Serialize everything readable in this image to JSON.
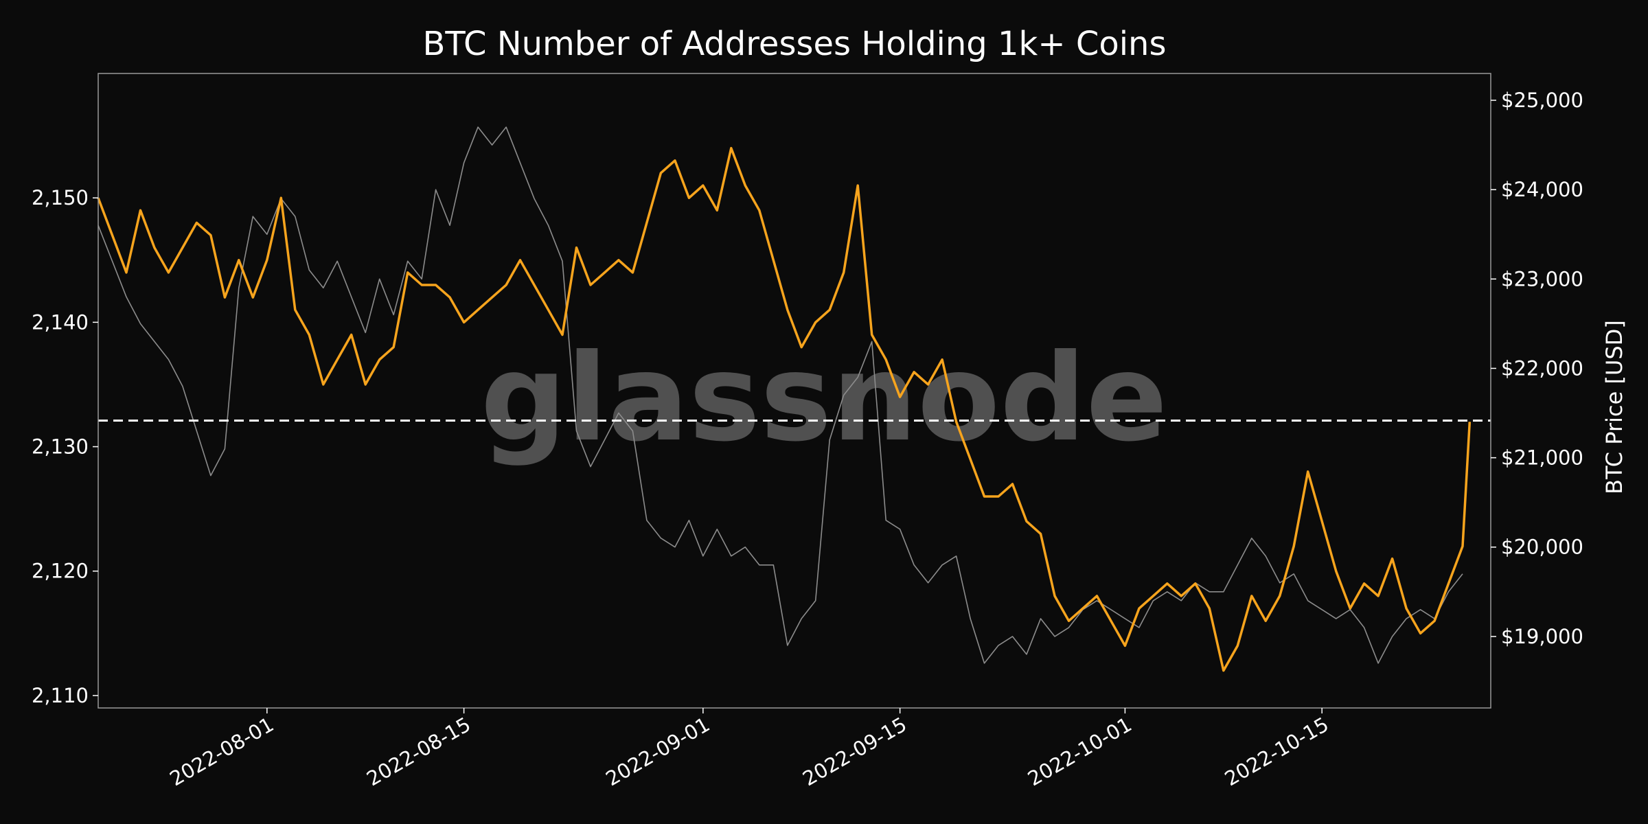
{
  "chart_data": {
    "type": "line",
    "title": "BTC Number of Addresses Holding 1k+ Coins",
    "watermark": "glassnode",
    "x_range": [
      "2022-07-20",
      "2022-10-27"
    ],
    "x_ticks": [
      "2022-08-01",
      "2022-08-15",
      "2022-09-01",
      "2022-09-15",
      "2022-10-01",
      "2022-10-15"
    ],
    "y_left": {
      "label": "",
      "ticks": [
        "2,110",
        "2,120",
        "2,130",
        "2,140",
        "2,150"
      ],
      "range": [
        2109,
        2160
      ]
    },
    "y_right": {
      "label": "BTC Price [USD]",
      "ticks": [
        "$19,000",
        "$20,000",
        "$21,000",
        "$22,000",
        "$23,000",
        "$24,000",
        "$25,000"
      ],
      "range": [
        18200,
        25300
      ]
    },
    "reference_line": {
      "axis": "left",
      "value": 2132.1,
      "style": "dashed",
      "color": "#ffffff"
    },
    "colors": {
      "addresses": "#f7a41d",
      "price": "#8c8c8c",
      "background": "#0b0b0b",
      "frame": "#9a9a9a"
    },
    "series": [
      {
        "axis": "left",
        "color": "#f7a41d",
        "points": [
          [
            "2022-07-20",
            2150
          ],
          [
            "2022-07-21",
            2147
          ],
          [
            "2022-07-22",
            2144
          ],
          [
            "2022-07-23",
            2149
          ],
          [
            "2022-07-24",
            2146
          ],
          [
            "2022-07-25",
            2144
          ],
          [
            "2022-07-26",
            2146
          ],
          [
            "2022-07-27",
            2148
          ],
          [
            "2022-07-28",
            2147
          ],
          [
            "2022-07-29",
            2142
          ],
          [
            "2022-07-30",
            2145
          ],
          [
            "2022-07-31",
            2142
          ],
          [
            "2022-08-01",
            2145
          ],
          [
            "2022-08-02",
            2150
          ],
          [
            "2022-08-03",
            2141
          ],
          [
            "2022-08-04",
            2139
          ],
          [
            "2022-08-05",
            2135
          ],
          [
            "2022-08-06",
            2137
          ],
          [
            "2022-08-07",
            2139
          ],
          [
            "2022-08-08",
            2135
          ],
          [
            "2022-08-09",
            2137
          ],
          [
            "2022-08-10",
            2138
          ],
          [
            "2022-08-11",
            2144
          ],
          [
            "2022-08-12",
            2143
          ],
          [
            "2022-08-13",
            2143
          ],
          [
            "2022-08-14",
            2142
          ],
          [
            "2022-08-15",
            2140
          ],
          [
            "2022-08-16",
            2141
          ],
          [
            "2022-08-17",
            2142
          ],
          [
            "2022-08-18",
            2143
          ],
          [
            "2022-08-19",
            2145
          ],
          [
            "2022-08-20",
            2143
          ],
          [
            "2022-08-21",
            2141
          ],
          [
            "2022-08-22",
            2139
          ],
          [
            "2022-08-23",
            2146
          ],
          [
            "2022-08-24",
            2143
          ],
          [
            "2022-08-25",
            2144
          ],
          [
            "2022-08-26",
            2145
          ],
          [
            "2022-08-27",
            2144
          ],
          [
            "2022-08-28",
            2148
          ],
          [
            "2022-08-29",
            2152
          ],
          [
            "2022-08-30",
            2153
          ],
          [
            "2022-08-31",
            2150
          ],
          [
            "2022-09-01",
            2151
          ],
          [
            "2022-09-02",
            2149
          ],
          [
            "2022-09-03",
            2154
          ],
          [
            "2022-09-04",
            2151
          ],
          [
            "2022-09-05",
            2149
          ],
          [
            "2022-09-06",
            2145
          ],
          [
            "2022-09-07",
            2141
          ],
          [
            "2022-09-08",
            2138
          ],
          [
            "2022-09-09",
            2140
          ],
          [
            "2022-09-10",
            2141
          ],
          [
            "2022-09-11",
            2144
          ],
          [
            "2022-09-12",
            2151
          ],
          [
            "2022-09-13",
            2139
          ],
          [
            "2022-09-14",
            2137
          ],
          [
            "2022-09-15",
            2134
          ],
          [
            "2022-09-16",
            2136
          ],
          [
            "2022-09-17",
            2135
          ],
          [
            "2022-09-18",
            2137
          ],
          [
            "2022-09-19",
            2132
          ],
          [
            "2022-09-20",
            2129
          ],
          [
            "2022-09-21",
            2126
          ],
          [
            "2022-09-22",
            2126
          ],
          [
            "2022-09-23",
            2127
          ],
          [
            "2022-09-24",
            2124
          ],
          [
            "2022-09-25",
            2123
          ],
          [
            "2022-09-26",
            2118
          ],
          [
            "2022-09-27",
            2116
          ],
          [
            "2022-09-28",
            2117
          ],
          [
            "2022-09-29",
            2118
          ],
          [
            "2022-09-30",
            2116
          ],
          [
            "2022-10-01",
            2114
          ],
          [
            "2022-10-02",
            2117
          ],
          [
            "2022-10-03",
            2118
          ],
          [
            "2022-10-04",
            2119
          ],
          [
            "2022-10-05",
            2118
          ],
          [
            "2022-10-06",
            2119
          ],
          [
            "2022-10-07",
            2117
          ],
          [
            "2022-10-08",
            2112
          ],
          [
            "2022-10-09",
            2114
          ],
          [
            "2022-10-10",
            2118
          ],
          [
            "2022-10-11",
            2116
          ],
          [
            "2022-10-12",
            2118
          ],
          [
            "2022-10-13",
            2122
          ],
          [
            "2022-10-14",
            2128
          ],
          [
            "2022-10-15",
            2124
          ],
          [
            "2022-10-16",
            2120
          ],
          [
            "2022-10-17",
            2117
          ],
          [
            "2022-10-18",
            2119
          ],
          [
            "2022-10-19",
            2118
          ],
          [
            "2022-10-20",
            2121
          ],
          [
            "2022-10-21",
            2117
          ],
          [
            "2022-10-22",
            2115
          ],
          [
            "2022-10-23",
            2116
          ],
          [
            "2022-10-24",
            2119
          ],
          [
            "2022-10-25",
            2122
          ],
          [
            "2022-10-25T12:00",
            2132
          ]
        ]
      },
      {
        "axis": "right",
        "color": "#8c8c8c",
        "points": [
          [
            "2022-07-20",
            23600
          ],
          [
            "2022-07-21",
            23200
          ],
          [
            "2022-07-22",
            22800
          ],
          [
            "2022-07-23",
            22500
          ],
          [
            "2022-07-24",
            22300
          ],
          [
            "2022-07-25",
            22100
          ],
          [
            "2022-07-26",
            21800
          ],
          [
            "2022-07-27",
            21300
          ],
          [
            "2022-07-28",
            20800
          ],
          [
            "2022-07-29",
            21100
          ],
          [
            "2022-07-30",
            22900
          ],
          [
            "2022-07-31",
            23700
          ],
          [
            "2022-08-01",
            23500
          ],
          [
            "2022-08-02",
            23900
          ],
          [
            "2022-08-03",
            23700
          ],
          [
            "2022-08-04",
            23100
          ],
          [
            "2022-08-05",
            22900
          ],
          [
            "2022-08-06",
            23200
          ],
          [
            "2022-08-07",
            22800
          ],
          [
            "2022-08-08",
            22400
          ],
          [
            "2022-08-09",
            23000
          ],
          [
            "2022-08-10",
            22600
          ],
          [
            "2022-08-11",
            23200
          ],
          [
            "2022-08-12",
            23000
          ],
          [
            "2022-08-13",
            24000
          ],
          [
            "2022-08-14",
            23600
          ],
          [
            "2022-08-15",
            24300
          ],
          [
            "2022-08-16",
            24700
          ],
          [
            "2022-08-17",
            24500
          ],
          [
            "2022-08-18",
            24700
          ],
          [
            "2022-08-19",
            24300
          ],
          [
            "2022-08-20",
            23900
          ],
          [
            "2022-08-21",
            23600
          ],
          [
            "2022-08-22",
            23200
          ],
          [
            "2022-08-23",
            21300
          ],
          [
            "2022-08-24",
            20900
          ],
          [
            "2022-08-25",
            21200
          ],
          [
            "2022-08-26",
            21500
          ],
          [
            "2022-08-27",
            21300
          ],
          [
            "2022-08-28",
            20300
          ],
          [
            "2022-08-29",
            20100
          ],
          [
            "2022-08-30",
            20000
          ],
          [
            "2022-08-31",
            20300
          ],
          [
            "2022-09-01",
            19900
          ],
          [
            "2022-09-02",
            20200
          ],
          [
            "2022-09-03",
            19900
          ],
          [
            "2022-09-04",
            20000
          ],
          [
            "2022-09-05",
            19800
          ],
          [
            "2022-09-06",
            19800
          ],
          [
            "2022-09-07",
            18900
          ],
          [
            "2022-09-08",
            19200
          ],
          [
            "2022-09-09",
            19400
          ],
          [
            "2022-09-10",
            21200
          ],
          [
            "2022-09-11",
            21700
          ],
          [
            "2022-09-12",
            21900
          ],
          [
            "2022-09-13",
            22300
          ],
          [
            "2022-09-14",
            20300
          ],
          [
            "2022-09-15",
            20200
          ],
          [
            "2022-09-16",
            19800
          ],
          [
            "2022-09-17",
            19600
          ],
          [
            "2022-09-18",
            19800
          ],
          [
            "2022-09-19",
            19900
          ],
          [
            "2022-09-20",
            19200
          ],
          [
            "2022-09-21",
            18700
          ],
          [
            "2022-09-22",
            18900
          ],
          [
            "2022-09-23",
            19000
          ],
          [
            "2022-09-24",
            18800
          ],
          [
            "2022-09-25",
            19200
          ],
          [
            "2022-09-26",
            19000
          ],
          [
            "2022-09-27",
            19100
          ],
          [
            "2022-09-28",
            19300
          ],
          [
            "2022-09-29",
            19400
          ],
          [
            "2022-09-30",
            19300
          ],
          [
            "2022-10-01",
            19200
          ],
          [
            "2022-10-02",
            19100
          ],
          [
            "2022-10-03",
            19400
          ],
          [
            "2022-10-04",
            19500
          ],
          [
            "2022-10-05",
            19400
          ],
          [
            "2022-10-06",
            19600
          ],
          [
            "2022-10-07",
            19500
          ],
          [
            "2022-10-08",
            19500
          ],
          [
            "2022-10-09",
            19800
          ],
          [
            "2022-10-10",
            20100
          ],
          [
            "2022-10-11",
            19900
          ],
          [
            "2022-10-12",
            19600
          ],
          [
            "2022-10-13",
            19700
          ],
          [
            "2022-10-14",
            19400
          ],
          [
            "2022-10-15",
            19300
          ],
          [
            "2022-10-16",
            19200
          ],
          [
            "2022-10-17",
            19300
          ],
          [
            "2022-10-18",
            19100
          ],
          [
            "2022-10-19",
            18700
          ],
          [
            "2022-10-20",
            19000
          ],
          [
            "2022-10-21",
            19200
          ],
          [
            "2022-10-22",
            19300
          ],
          [
            "2022-10-23",
            19200
          ],
          [
            "2022-10-24",
            19500
          ],
          [
            "2022-10-25",
            19700
          ]
        ]
      }
    ]
  }
}
